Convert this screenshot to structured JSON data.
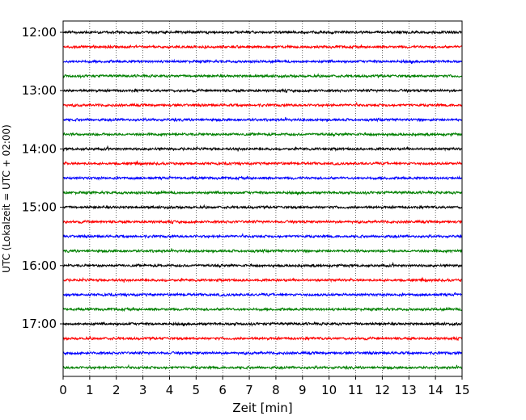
{
  "chart_data": {
    "type": "line",
    "title": "",
    "xlabel": "Zeit  [min]",
    "ylabel": "UTC (Lokalzeit = UTC + 02:00)",
    "xlim": [
      0,
      15
    ],
    "x_ticks": [
      "0",
      "1",
      "2",
      "3",
      "4",
      "5",
      "6",
      "7",
      "8",
      "9",
      "10",
      "11",
      "12",
      "13",
      "14",
      "15"
    ],
    "y_ticks": [
      "12:00",
      "13:00",
      "14:00",
      "15:00",
      "16:00",
      "17:00"
    ],
    "grid": "vertical dotted",
    "legend": "none",
    "trace_interval_min": 15,
    "colors": [
      "#000000",
      "#ff0000",
      "#0000ff",
      "#008000"
    ],
    "series": [
      {
        "start": "12:00",
        "color": "#000000"
      },
      {
        "start": "12:15",
        "color": "#ff0000"
      },
      {
        "start": "12:30",
        "color": "#0000ff"
      },
      {
        "start": "12:45",
        "color": "#008000"
      },
      {
        "start": "13:00",
        "color": "#000000"
      },
      {
        "start": "13:15",
        "color": "#ff0000"
      },
      {
        "start": "13:30",
        "color": "#0000ff"
      },
      {
        "start": "13:45",
        "color": "#008000"
      },
      {
        "start": "14:00",
        "color": "#000000"
      },
      {
        "start": "14:15",
        "color": "#ff0000"
      },
      {
        "start": "14:30",
        "color": "#0000ff"
      },
      {
        "start": "14:45",
        "color": "#008000"
      },
      {
        "start": "15:00",
        "color": "#000000"
      },
      {
        "start": "15:15",
        "color": "#ff0000"
      },
      {
        "start": "15:30",
        "color": "#0000ff"
      },
      {
        "start": "15:45",
        "color": "#008000"
      },
      {
        "start": "16:00",
        "color": "#000000"
      },
      {
        "start": "16:15",
        "color": "#ff0000"
      },
      {
        "start": "16:30",
        "color": "#0000ff"
      },
      {
        "start": "16:45",
        "color": "#008000"
      },
      {
        "start": "17:00",
        "color": "#000000"
      },
      {
        "start": "17:15",
        "color": "#ff0000"
      },
      {
        "start": "17:30",
        "color": "#0000ff"
      },
      {
        "start": "17:45",
        "color": "#008000"
      }
    ]
  }
}
